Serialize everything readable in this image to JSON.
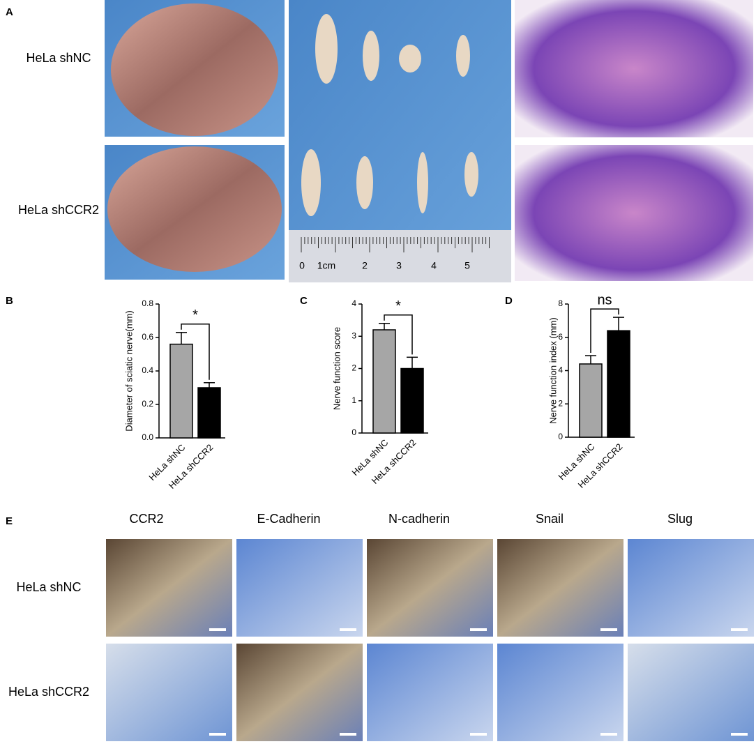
{
  "panel_labels": [
    "A",
    "B",
    "C",
    "D",
    "E"
  ],
  "rows_a": [
    "HeLa shNC",
    "HeLa shCCR2"
  ],
  "ruler_labels": [
    "0",
    "1cm",
    "2",
    "3",
    "4",
    "5"
  ],
  "markers_e": [
    "CCR2",
    "E-Cadherin",
    "N-cadherin",
    "Snail",
    "Slug"
  ],
  "rows_e": [
    "HeLa shNC",
    "HeLa shCCR2"
  ],
  "chart_data": [
    {
      "type": "bar",
      "y_label": "Diameter of sciatic nerve(mm)",
      "categories": [
        "HeLa shNC",
        "HeLa shCCR2"
      ],
      "values": [
        0.56,
        0.3
      ],
      "errors": [
        0.07,
        0.03
      ],
      "colors": [
        "#a6a6a6",
        "#000000"
      ],
      "ylim": [
        0,
        0.8
      ],
      "yticks": [
        {
          "value": 0,
          "label": "0.0"
        },
        0.2,
        0.4,
        0.6,
        0.8
      ],
      "annotation": "*"
    },
    {
      "type": "bar",
      "y_label": "Nerve function score",
      "categories": [
        "HeLa shNC",
        "HeLa shCCR2"
      ],
      "values": [
        3.2,
        2.0
      ],
      "errors": [
        0.2,
        0.35
      ],
      "colors": [
        "#a6a6a6",
        "#000000"
      ],
      "ylim": [
        0,
        4
      ],
      "yticks": [
        0,
        1,
        2,
        3,
        4
      ],
      "annotation": "*"
    },
    {
      "type": "bar",
      "y_label": "Nerve function index (mm)",
      "categories": [
        "HeLa shNC",
        "HeLa shCCR2"
      ],
      "values": [
        4.4,
        6.4
      ],
      "errors": [
        0.5,
        0.8
      ],
      "colors": [
        "#a6a6a6",
        "#000000"
      ],
      "ylim": [
        0,
        8
      ],
      "yticks": [
        0,
        2,
        4,
        6,
        8
      ],
      "annotation": "ns"
    }
  ]
}
